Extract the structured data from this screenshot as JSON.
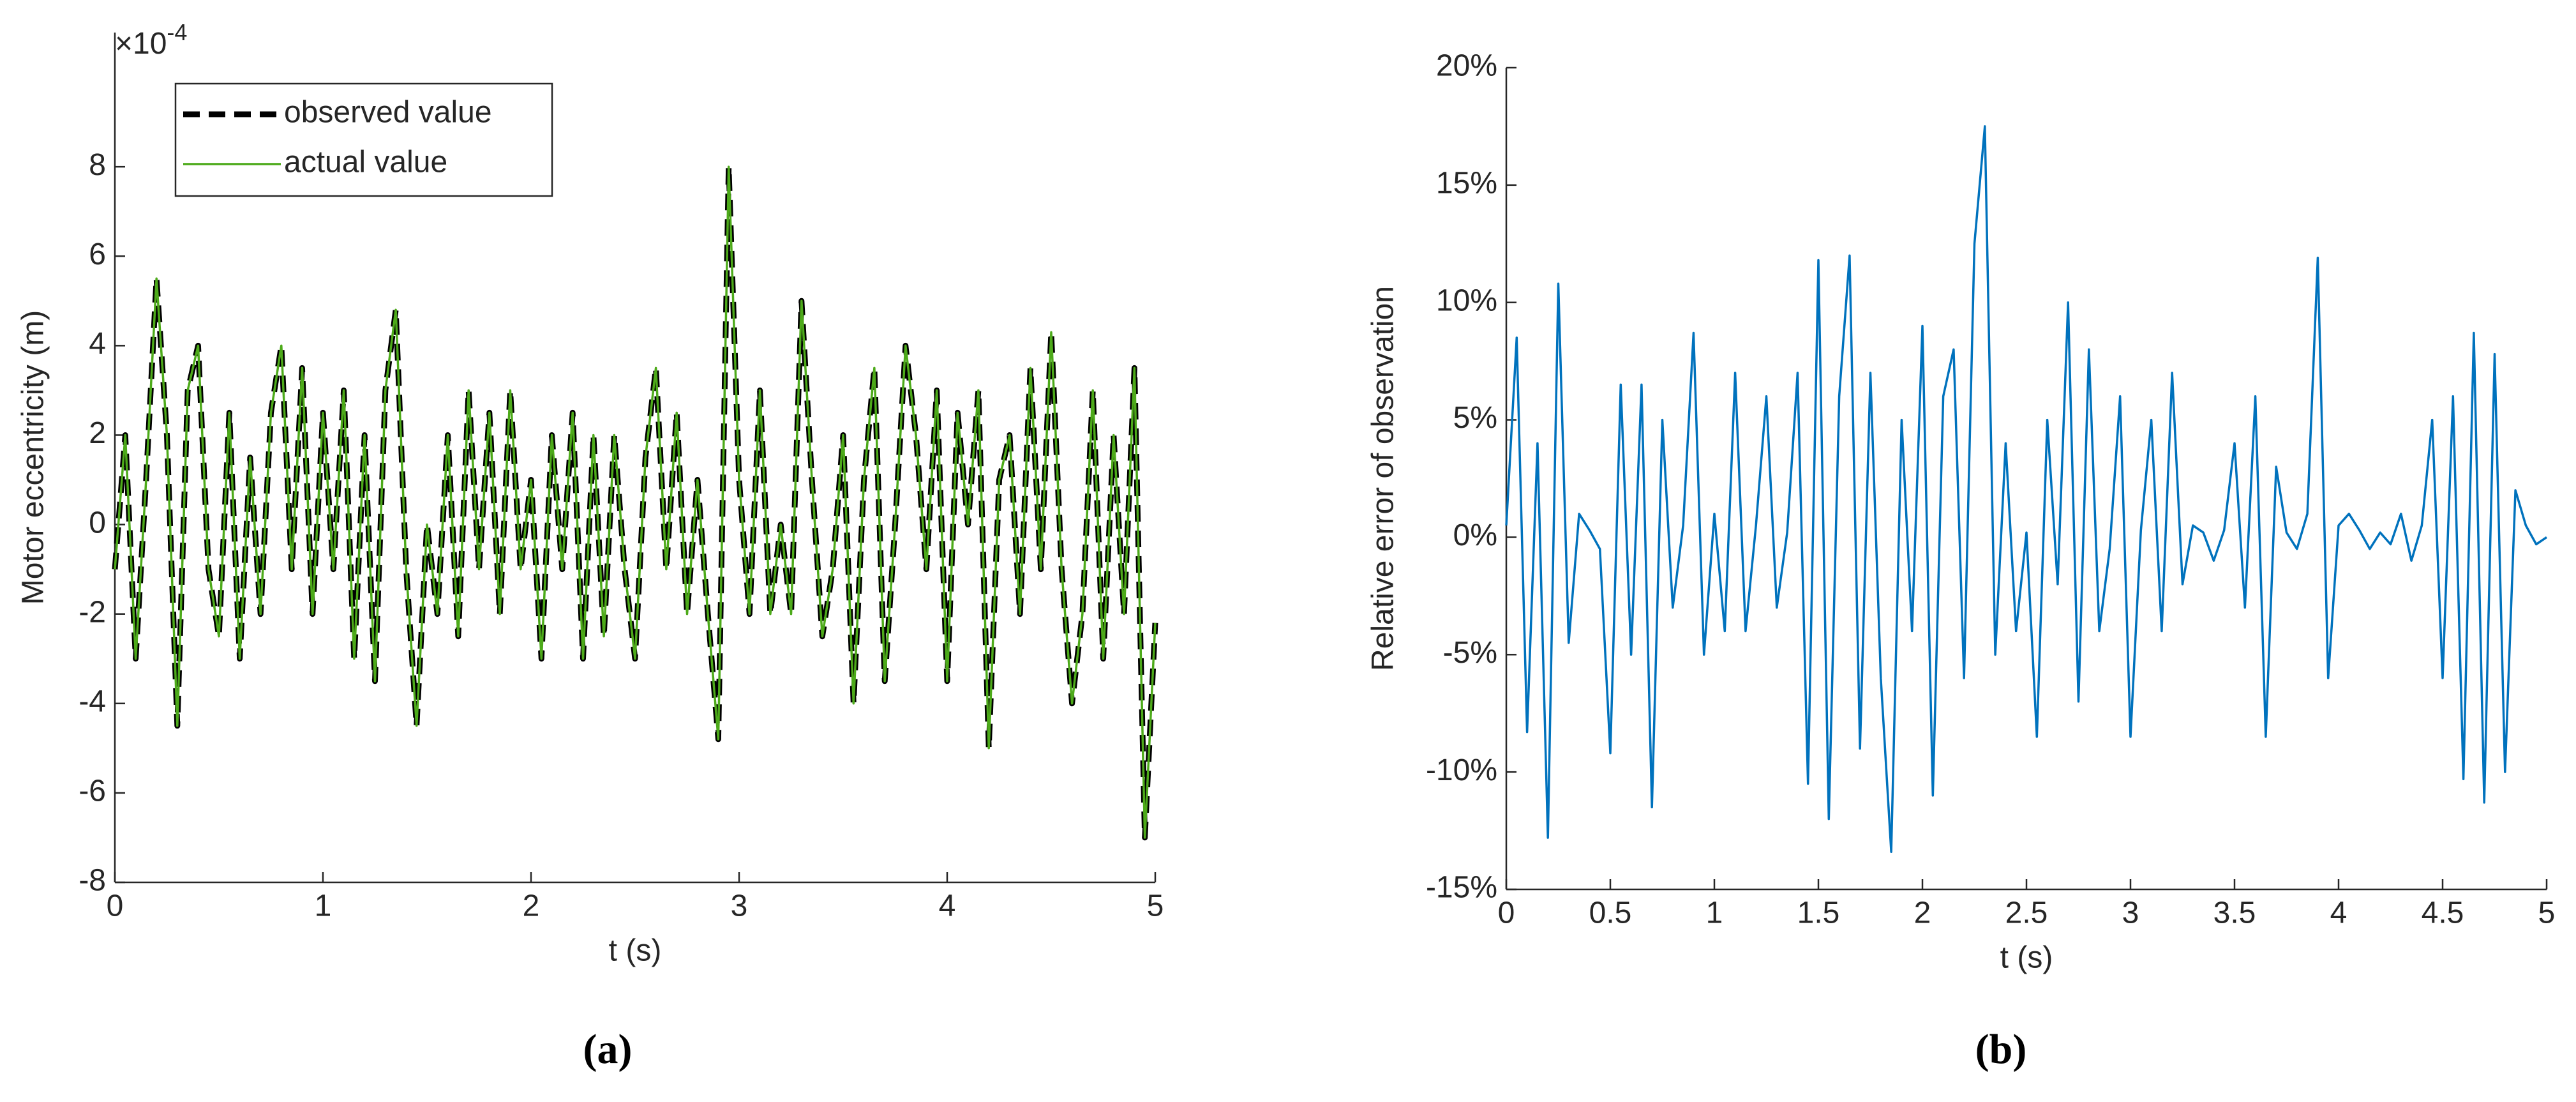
{
  "chart_data": [
    {
      "type": "line",
      "ylabel": "Motor eccentricity (m)",
      "xlabel": "t (s)",
      "caption": "(a)",
      "axis_multiplier": {
        "base": "×10",
        "exponent": "-4"
      },
      "legend": "upper left",
      "xlim": [
        0,
        5
      ],
      "xticks": [
        0,
        1,
        2,
        3,
        4,
        5
      ],
      "ylim": [
        -8,
        11
      ],
      "yticks": [
        -8,
        -6,
        -4,
        -2,
        0,
        2,
        4,
        6,
        8
      ],
      "x": [
        0,
        0.05,
        0.1,
        0.15,
        0.2,
        0.25,
        0.3,
        0.35,
        0.4,
        0.45,
        0.5,
        0.55,
        0.6,
        0.65,
        0.7,
        0.75,
        0.8,
        0.85,
        0.9,
        0.95,
        1,
        1.05,
        1.1,
        1.15,
        1.2,
        1.25,
        1.3,
        1.35,
        1.4,
        1.45,
        1.5,
        1.55,
        1.6,
        1.65,
        1.7,
        1.75,
        1.8,
        1.85,
        1.9,
        1.95,
        2,
        2.05,
        2.1,
        2.15,
        2.2,
        2.25,
        2.3,
        2.35,
        2.4,
        2.45,
        2.5,
        2.55,
        2.6,
        2.65,
        2.7,
        2.75,
        2.8,
        2.85,
        2.9,
        2.95,
        3,
        3.05,
        3.1,
        3.15,
        3.2,
        3.25,
        3.3,
        3.35,
        3.4,
        3.45,
        3.5,
        3.55,
        3.6,
        3.65,
        3.7,
        3.75,
        3.8,
        3.85,
        3.9,
        3.95,
        4,
        4.05,
        4.1,
        4.15,
        4.2,
        4.25,
        4.3,
        4.35,
        4.4,
        4.45,
        4.5,
        4.55,
        4.6,
        4.65,
        4.7,
        4.75,
        4.8,
        4.85,
        4.9,
        4.95,
        5
      ],
      "series": [
        {
          "name": "observed value",
          "color": "#000000",
          "dashed": true,
          "values": [
            -1,
            2,
            -3,
            1,
            5.5,
            2,
            -4.5,
            3,
            4,
            -1,
            -2.5,
            2.5,
            -3,
            1.5,
            -2,
            2.5,
            4,
            -1,
            3.5,
            -2,
            2.5,
            -1,
            3,
            -3,
            2,
            -3.5,
            3,
            4.8,
            -1,
            -4.5,
            0,
            -2,
            2,
            -2.5,
            3,
            -1,
            2.5,
            -2,
            3,
            -1,
            1,
            -3,
            2,
            -1,
            2.5,
            -3,
            2,
            -2.5,
            2,
            -1,
            -3,
            1.5,
            3.5,
            -1,
            2.5,
            -2,
            1,
            -2,
            -4.8,
            8,
            1,
            -2,
            3,
            -2,
            0,
            -2,
            5,
            1,
            -2.5,
            -1,
            2,
            -4,
            1,
            3.5,
            -3.5,
            0,
            4,
            2,
            -1,
            3,
            -3.5,
            2.5,
            0,
            3,
            -5,
            1,
            2,
            -2,
            3.5,
            -1,
            4.3,
            -1,
            -4,
            -2,
            3,
            -3,
            2,
            -2,
            3.5,
            -7,
            -2.2
          ]
        },
        {
          "name": "actual value",
          "color": "#4daa1a",
          "dashed": false,
          "values": [
            -1,
            2,
            -3,
            1,
            5.5,
            2,
            -4.5,
            3,
            4,
            -1,
            -2.5,
            2.5,
            -3,
            1.5,
            -2,
            2.5,
            4,
            -1,
            3.5,
            -2,
            2.5,
            -1,
            3,
            -3,
            2,
            -3.5,
            3,
            4.8,
            -1,
            -4.5,
            0,
            -2,
            2,
            -2.5,
            3,
            -1,
            2.5,
            -2,
            3,
            -1,
            1,
            -3,
            2,
            -1,
            2.5,
            -3,
            2,
            -2.5,
            2,
            -1,
            -3,
            1.5,
            3.5,
            -1,
            2.5,
            -2,
            1,
            -2,
            -4.8,
            8,
            1,
            -2,
            3,
            -2,
            0,
            -2,
            5,
            1,
            -2.5,
            -1,
            2,
            -4,
            1,
            3.5,
            -3.5,
            0,
            4,
            2,
            -1,
            3,
            -3.5,
            2.5,
            0,
            3,
            -5,
            1,
            2,
            -2,
            3.5,
            -1,
            4.3,
            -1,
            -4,
            -2,
            3,
            -3,
            2,
            -2,
            3.5,
            -7,
            -2.2
          ]
        }
      ]
    },
    {
      "type": "line",
      "ylabel": "Relative error of observation",
      "xlabel": "t (s)",
      "caption": "(b)",
      "xlim": [
        0,
        5
      ],
      "xticks": [
        0,
        0.5,
        1,
        1.5,
        2,
        2.5,
        3,
        3.5,
        4,
        4.5,
        5
      ],
      "ylim": [
        -15,
        20
      ],
      "yticks": [
        {
          "value": -15,
          "label": "-15%"
        },
        {
          "value": -10,
          "label": "-10%"
        },
        {
          "value": -5,
          "label": "-5%"
        },
        {
          "value": 0,
          "label": "0%"
        },
        {
          "value": 5,
          "label": "5%"
        },
        {
          "value": 10,
          "label": "10%"
        },
        {
          "value": 15,
          "label": "15%"
        },
        {
          "value": 20,
          "label": "20%"
        }
      ],
      "x": [
        0,
        0.05,
        0.1,
        0.15,
        0.2,
        0.25,
        0.3,
        0.35,
        0.4,
        0.45,
        0.5,
        0.55,
        0.6,
        0.65,
        0.7,
        0.75,
        0.8,
        0.85,
        0.9,
        0.95,
        1,
        1.05,
        1.1,
        1.15,
        1.2,
        1.25,
        1.3,
        1.35,
        1.4,
        1.45,
        1.5,
        1.55,
        1.6,
        1.65,
        1.7,
        1.75,
        1.8,
        1.85,
        1.9,
        1.95,
        2,
        2.05,
        2.1,
        2.15,
        2.2,
        2.25,
        2.3,
        2.35,
        2.4,
        2.45,
        2.5,
        2.55,
        2.6,
        2.65,
        2.7,
        2.75,
        2.8,
        2.85,
        2.9,
        2.95,
        3,
        3.05,
        3.1,
        3.15,
        3.2,
        3.25,
        3.3,
        3.35,
        3.4,
        3.45,
        3.5,
        3.55,
        3.6,
        3.65,
        3.7,
        3.75,
        3.8,
        3.85,
        3.9,
        3.95,
        4,
        4.05,
        4.1,
        4.15,
        4.2,
        4.25,
        4.3,
        4.35,
        4.4,
        4.45,
        4.5,
        4.55,
        4.6,
        4.65,
        4.7,
        4.75,
        4.8,
        4.85,
        4.9,
        4.95,
        5
      ],
      "series": [
        {
          "name": null,
          "color": "#0072bd",
          "dashed": false,
          "values": [
            0.5,
            8.5,
            -8.3,
            4,
            -12.8,
            10.8,
            -4.5,
            1,
            0.3,
            -0.5,
            -9.2,
            6.5,
            -5,
            6.5,
            -11.5,
            5,
            -3,
            0.5,
            8.7,
            -5,
            1,
            -4,
            7,
            -4,
            0.5,
            6,
            -3,
            0.2,
            7,
            -10.5,
            11.8,
            -12,
            6,
            12,
            -9,
            7,
            -6,
            -13.4,
            5,
            -4,
            9,
            -11,
            6,
            8,
            -6,
            12.5,
            17.5,
            -5,
            4,
            -4,
            0.2,
            -8.5,
            5,
            -2,
            10,
            -7,
            8,
            -4,
            -0.5,
            6,
            -8.5,
            0.3,
            5,
            -4,
            7,
            -2,
            0.5,
            0.2,
            -1,
            0.3,
            4,
            -3,
            6,
            -8.5,
            3,
            0.2,
            -0.5,
            1,
            11.9,
            -6,
            0.5,
            1,
            0.3,
            -0.5,
            0.2,
            -0.3,
            1,
            -1,
            0.5,
            5,
            -6,
            6,
            -10.3,
            8.7,
            -11.3,
            7.8,
            -10,
            2,
            0.5,
            -0.3,
            0
          ]
        }
      ]
    }
  ]
}
